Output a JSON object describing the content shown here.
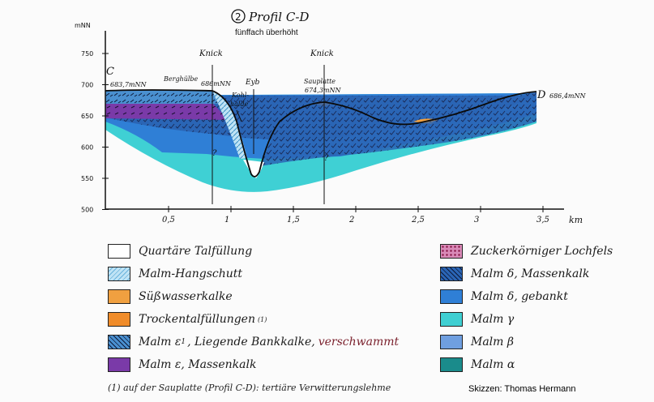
{
  "title": {
    "number": "2",
    "text": "Profil C-D",
    "subtitle": "fünffach überhöht"
  },
  "axes": {
    "y_unit": "mNN",
    "y_ticks": [
      "750",
      "700",
      "650",
      "600",
      "550",
      "500"
    ],
    "x_unit": "km",
    "x_ticks": [
      "0,5",
      "1",
      "1,5",
      "2",
      "2,5",
      "3",
      "3,5"
    ]
  },
  "labels": {
    "point_c": "C",
    "elev_c": "683,7mNN",
    "point_d": "D",
    "elev_d": "686,4mNN",
    "knick_1": "Knick",
    "knick_2": "Knick",
    "berghuelbe": "Berghülbe",
    "berghuelbe_elev": "686mNN",
    "eyb": "Eyb",
    "kohlhalde_1": "Kohl-",
    "kohlhalde_2": "halde",
    "sauplatte": "Sauplatte",
    "sauplatte_elev": "674,3mNN",
    "question": "?"
  },
  "colors": {
    "quartaer": "#ffffff",
    "hangschutt": "#bfe3f5",
    "suesswasser": "#f0a040",
    "trockental": "#f08c2a",
    "malm_e1": "#4a90d0",
    "malm_e": "#7a3aa8",
    "zuckerkorn": "#d98ab8",
    "malm_delta_massen": "#2a65b5",
    "malm_delta_gebankt": "#2f7fd6",
    "malm_gamma": "#3fcfd2",
    "malm_beta": "#6f9fe0",
    "malm_alpha": "#1a8b8b"
  },
  "legend": {
    "quartaer": "Quartäre Talfüllung",
    "hangschutt": "Malm-Hangschutt",
    "suesswasser": "Süßwasserkalke",
    "trockental": "Trockentalfüllungen",
    "trockental_note": "(1)",
    "malm_e1_a": "Malm ε",
    "malm_e1_b": "1",
    "malm_e1_c": ", Liegende Bankkalke,",
    "malm_e1_d": "verschwammt",
    "malm_e": "Malm ε, Massenkalk",
    "zuckerkorn": "Zuckerkörniger Lochfels",
    "malm_delta_massen": "Malm δ, Massenkalk",
    "malm_delta_gebankt": "Malm δ, gebankt",
    "malm_gamma": "Malm γ",
    "malm_beta": "Malm β",
    "malm_alpha": "Malm α"
  },
  "footnote": "(1) auf der Sauplatte (Profil C-D): tertiäre Verwitterungslehme",
  "credit": "Skizzen: Thomas Hermann"
}
